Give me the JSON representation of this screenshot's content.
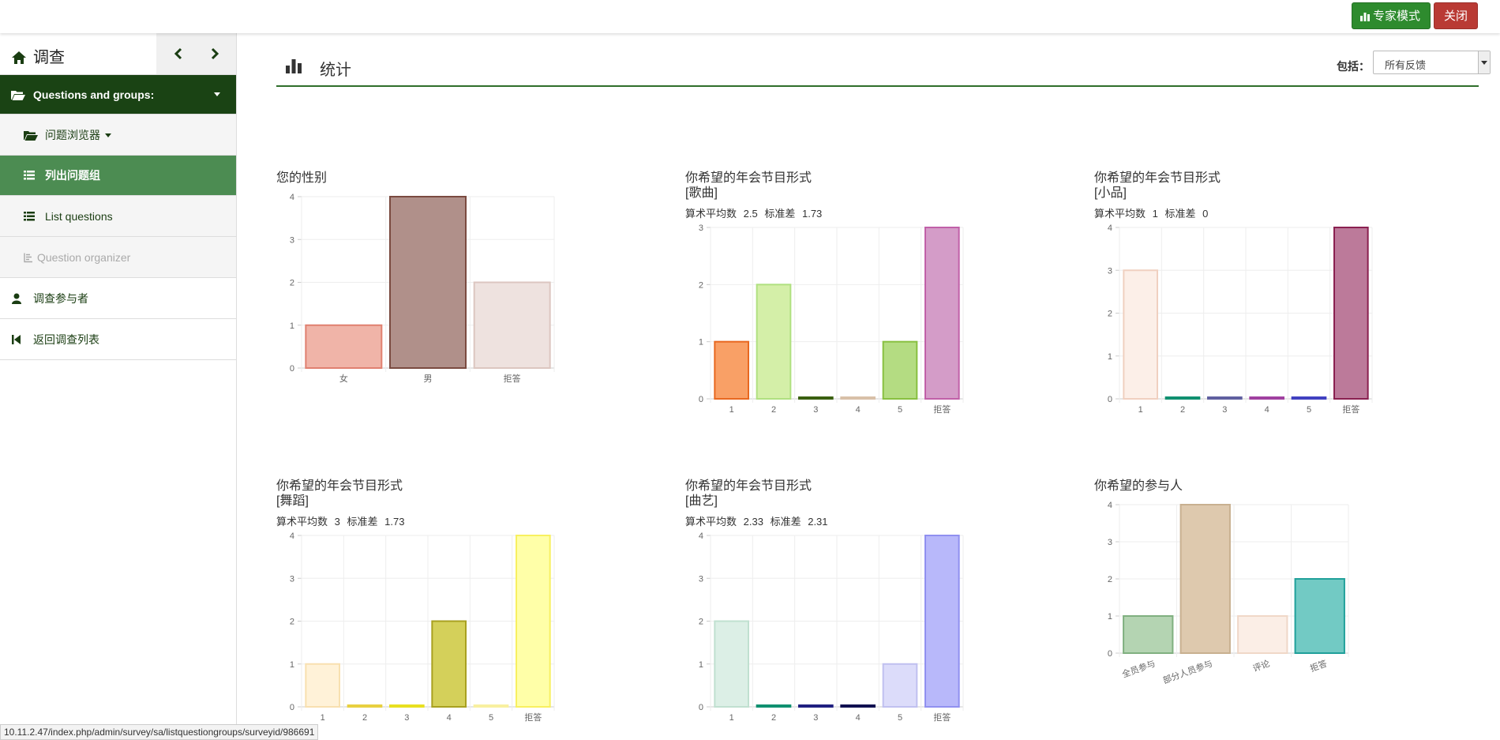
{
  "topbar": {
    "expert_label": "专家模式",
    "close_label": "关闭",
    "expert_color": "#2e8b2e",
    "close_color": "#b93a34"
  },
  "sidebar": {
    "title": "调查",
    "items": [
      {
        "label": "Questions and groups:",
        "icon": "folder-open-icon"
      },
      {
        "label": "问题浏览器",
        "icon": "folder-open-icon"
      },
      {
        "label": "列出问题组",
        "icon": "list-icon"
      },
      {
        "label": "List questions",
        "icon": "list-icon"
      },
      {
        "label": "Question organizer",
        "icon": "organizer-icon"
      },
      {
        "label": "调查参与者",
        "icon": "user-icon"
      },
      {
        "label": "返回调查列表",
        "icon": "step-backward-icon"
      }
    ]
  },
  "main": {
    "title": "统计",
    "include_label": "包括：",
    "include_value": "所有反馈"
  },
  "charts": [
    {
      "title": [
        "您的性别"
      ],
      "stats": null
    },
    {
      "title": [
        "你希望的年会节目形式",
        "[歌曲]"
      ],
      "stats": {
        "mean_label": "算术平均数",
        "mean": "2.5",
        "sd_label": "标准差",
        "sd": "1.73"
      }
    },
    {
      "title": [
        "你希望的年会节目形式",
        "[小品]"
      ],
      "stats": {
        "mean_label": "算术平均数",
        "mean": "1",
        "sd_label": "标准差",
        "sd": "0"
      }
    },
    {
      "title": [
        "你希望的年会节目形式",
        "[舞蹈]"
      ],
      "stats": {
        "mean_label": "算术平均数",
        "mean": "3",
        "sd_label": "标准差",
        "sd": "1.73"
      }
    },
    {
      "title": [
        "你希望的年会节目形式",
        "[曲艺]"
      ],
      "stats": {
        "mean_label": "算术平均数",
        "mean": "2.33",
        "sd_label": "标准差",
        "sd": "2.31"
      }
    },
    {
      "title": [
        "你希望的参与人"
      ],
      "stats": null
    }
  ],
  "chart_data": [
    {
      "type": "bar",
      "categories": [
        "女",
        "男",
        "拒答"
      ],
      "values": [
        1,
        4,
        2
      ],
      "ylim": [
        0,
        4
      ],
      "colors": [
        "#f0b4a8",
        "#b0908a",
        "#eee2df"
      ],
      "borders": [
        "#e08070",
        "#7a4a40",
        "#dcc6c0"
      ]
    },
    {
      "type": "bar",
      "categories": [
        "1",
        "2",
        "3",
        "4",
        "5",
        "拒答"
      ],
      "values": [
        1,
        2,
        0,
        0,
        1,
        3
      ],
      "ylim": [
        0,
        3
      ],
      "colors": [
        "#f9a066",
        "#d4efa8",
        "#4a7a1e",
        "#ead8c8",
        "#b4dc82",
        "#d49cc8"
      ],
      "borders": [
        "#e86820",
        "#b0e080",
        "#3a6010",
        "#d8c0a8",
        "#88c040",
        "#c060a8"
      ]
    },
    {
      "type": "bar",
      "categories": [
        "1",
        "2",
        "3",
        "4",
        "5",
        "拒答"
      ],
      "values": [
        3,
        0,
        0,
        0,
        0,
        4
      ],
      "ylim": [
        0,
        4
      ],
      "colors": [
        "#fcefe8",
        "#20b090",
        "#8080c0",
        "#c060c0",
        "#6060e0",
        "#bc7a9a"
      ],
      "borders": [
        "#f0d0c0",
        "#109070",
        "#6060a0",
        "#a040a0",
        "#4040c0",
        "#8a2050"
      ]
    },
    {
      "type": "bar",
      "categories": [
        "1",
        "2",
        "3",
        "4",
        "5",
        "拒答"
      ],
      "values": [
        1,
        0,
        0,
        2,
        0,
        4
      ],
      "ylim": [
        0,
        4
      ],
      "colors": [
        "#fff2d8",
        "#f4e88a",
        "#f8f040",
        "#d4d05a",
        "#fffbd0",
        "#ffffa8"
      ],
      "borders": [
        "#f8e0b0",
        "#e8d040",
        "#e8e020",
        "#a8a020",
        "#f8f0a0",
        "#f8f060"
      ]
    },
    {
      "type": "bar",
      "categories": [
        "1",
        "2",
        "3",
        "4",
        "5",
        "拒答"
      ],
      "values": [
        2,
        0,
        0,
        0,
        1,
        4
      ],
      "ylim": [
        0,
        4
      ],
      "colors": [
        "#dcefe6",
        "#20b090",
        "#303090",
        "#202060",
        "#dcdcfa",
        "#b8b8fa"
      ],
      "borders": [
        "#c0e0d0",
        "#109070",
        "#202080",
        "#101050",
        "#c0c0f0",
        "#9090f0"
      ]
    },
    {
      "type": "bar",
      "categories": [
        "全员参与",
        "部分人员参与",
        "评论",
        "拒答"
      ],
      "values": [
        1,
        4,
        1,
        2
      ],
      "ylim": [
        0,
        4
      ],
      "colors": [
        "#b4d4b2",
        "#dec9ae",
        "#fbeee6",
        "#72cac4"
      ],
      "borders": [
        "#80b080",
        "#c8b090",
        "#f0d8c8",
        "#20a09a"
      ]
    }
  ],
  "status_url": "10.11.2.47/index.php/admin/survey/sa/listquestiongroups/surveyid/986691"
}
